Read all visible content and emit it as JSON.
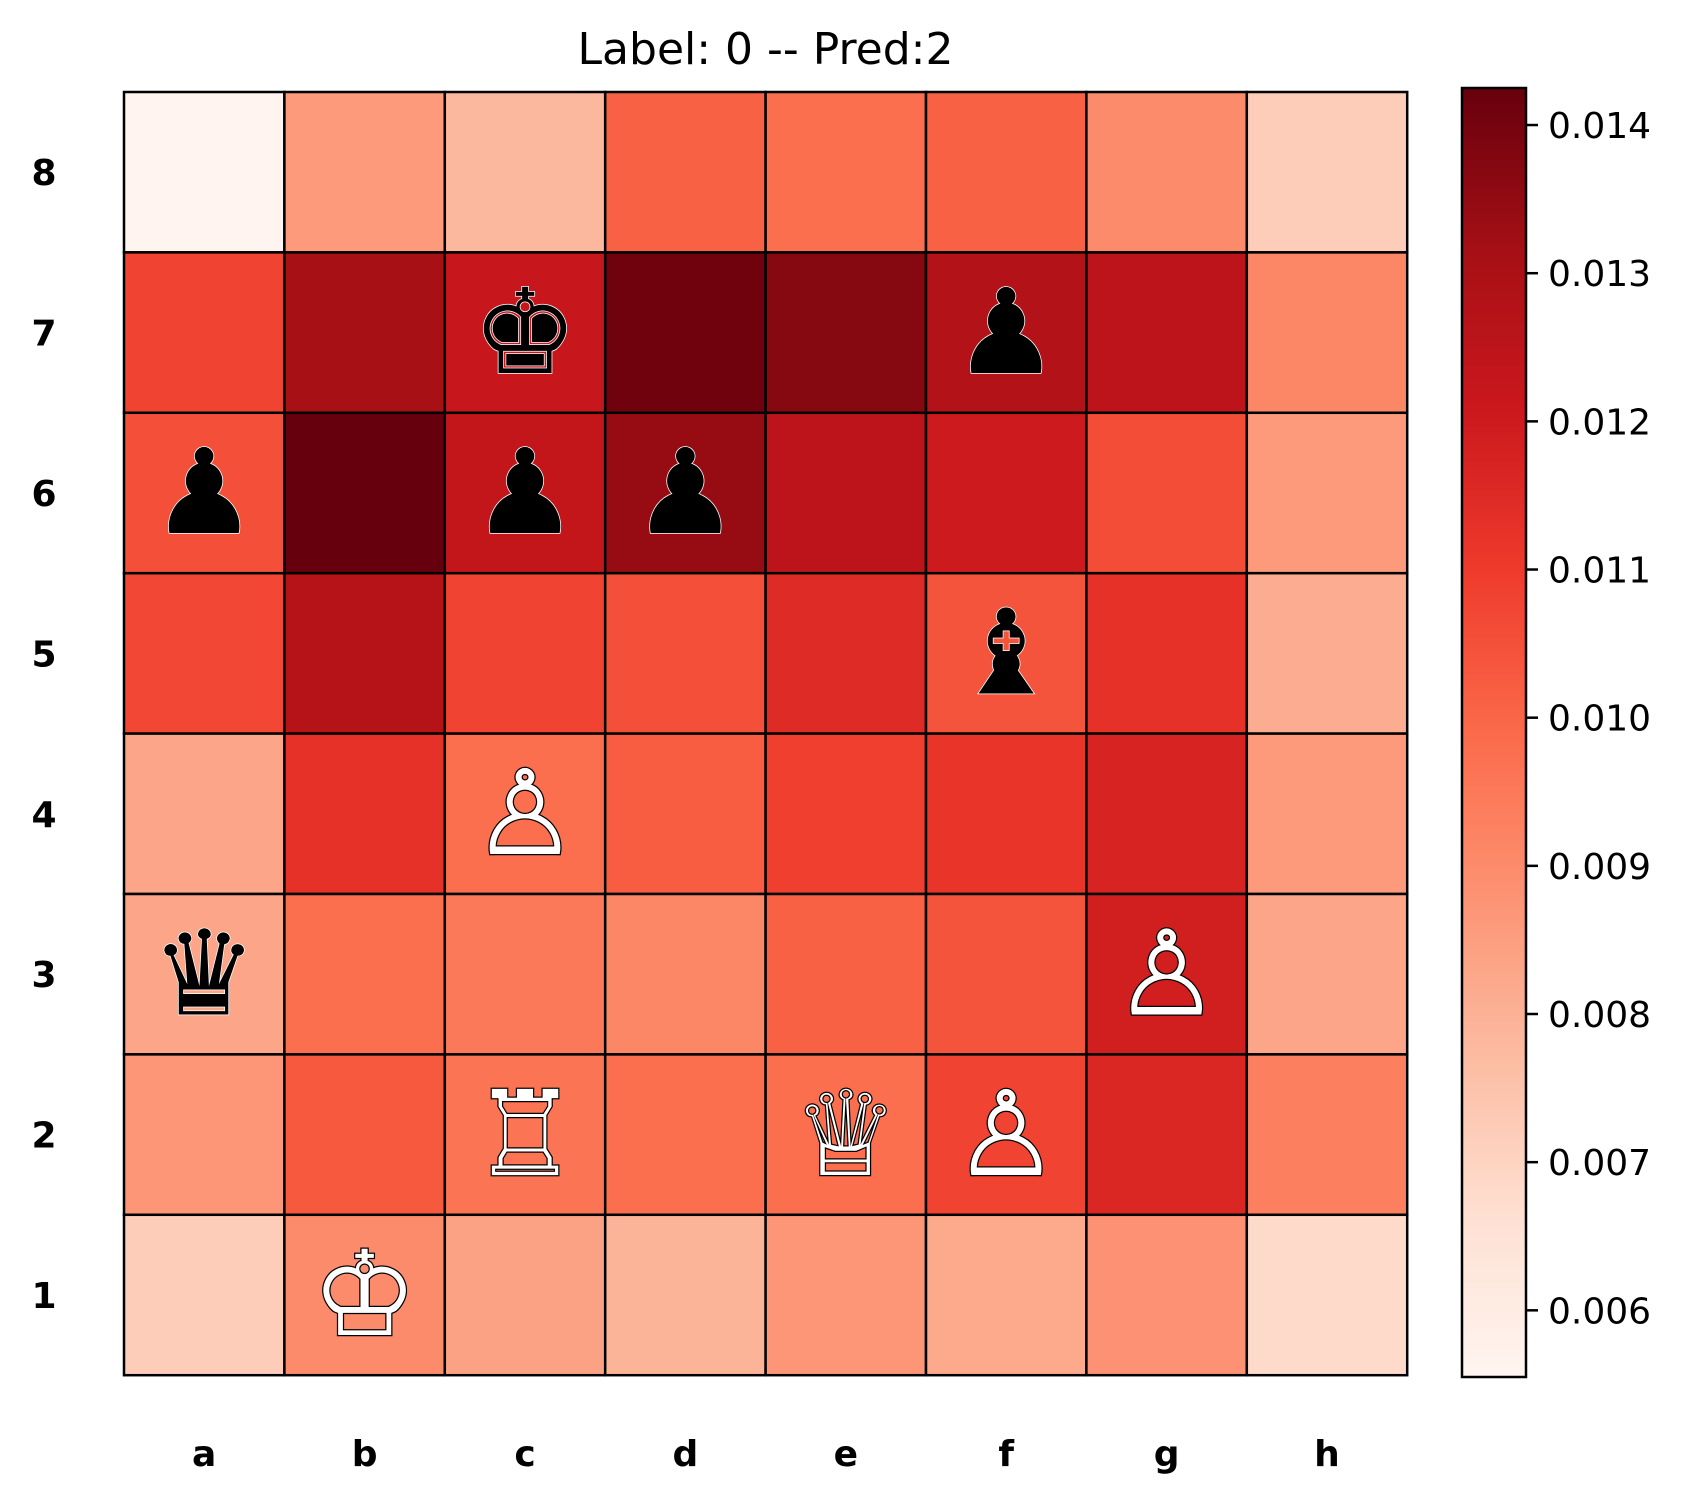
{
  "chart_data": {
    "type": "heatmap",
    "title": "Label: 0 -- Pred:2",
    "files": [
      "a",
      "b",
      "c",
      "d",
      "e",
      "f",
      "g",
      "h"
    ],
    "ranks": [
      "8",
      "7",
      "6",
      "5",
      "4",
      "3",
      "2",
      "1"
    ],
    "values": [
      [
        0.0056,
        0.0086,
        0.0078,
        0.0101,
        0.0098,
        0.0101,
        0.009,
        0.0072
      ],
      [
        0.0108,
        0.0131,
        0.0122,
        0.0141,
        0.0137,
        0.0128,
        0.0125,
        0.0091
      ],
      [
        0.0105,
        0.0143,
        0.0123,
        0.0134,
        0.0125,
        0.012,
        0.0106,
        0.0086
      ],
      [
        0.0107,
        0.0127,
        0.0108,
        0.0105,
        0.0115,
        0.0104,
        0.0113,
        0.0081
      ],
      [
        0.0083,
        0.0113,
        0.0098,
        0.0102,
        0.0109,
        0.0112,
        0.0117,
        0.0086
      ],
      [
        0.0083,
        0.0098,
        0.0095,
        0.0091,
        0.0101,
        0.0104,
        0.0119,
        0.0083
      ],
      [
        0.0087,
        0.0103,
        0.0096,
        0.0098,
        0.0098,
        0.0108,
        0.0116,
        0.0093
      ],
      [
        0.0072,
        0.009,
        0.0084,
        0.0079,
        0.0087,
        0.0082,
        0.0088,
        0.0068
      ]
    ],
    "colorbar": {
      "min": 0.00555,
      "max": 0.01425,
      "ticks": [
        "0.006",
        "0.007",
        "0.008",
        "0.009",
        "0.010",
        "0.011",
        "0.012",
        "0.013",
        "0.014"
      ],
      "colormap": "Reds",
      "colormap_colors": [
        "#fff5f0",
        "#fee0d2",
        "#fcbba1",
        "#fc9272",
        "#fb6a4a",
        "#ef3b2c",
        "#cb181d",
        "#a50f15",
        "#67000d"
      ]
    },
    "pieces": [
      {
        "square": "c7",
        "symbol": "♚",
        "color": "black",
        "name": "black-king"
      },
      {
        "square": "f7",
        "symbol": "♟",
        "color": "black",
        "name": "black-pawn"
      },
      {
        "square": "a6",
        "symbol": "♟",
        "color": "black",
        "name": "black-pawn"
      },
      {
        "square": "c6",
        "symbol": "♟",
        "color": "black",
        "name": "black-pawn"
      },
      {
        "square": "d6",
        "symbol": "♟",
        "color": "black",
        "name": "black-pawn"
      },
      {
        "square": "f5",
        "symbol": "♝",
        "color": "black",
        "name": "black-bishop"
      },
      {
        "square": "c4",
        "symbol": "♙",
        "color": "white",
        "name": "white-pawn"
      },
      {
        "square": "a3",
        "symbol": "♛",
        "color": "black",
        "name": "black-queen"
      },
      {
        "square": "g3",
        "symbol": "♙",
        "color": "white",
        "name": "white-pawn"
      },
      {
        "square": "c2",
        "symbol": "♖",
        "color": "white",
        "name": "white-rook"
      },
      {
        "square": "e2",
        "symbol": "♕",
        "color": "white",
        "name": "white-queen"
      },
      {
        "square": "f2",
        "symbol": "♙",
        "color": "white",
        "name": "white-pawn"
      },
      {
        "square": "b1",
        "symbol": "♔",
        "color": "white",
        "name": "white-king"
      }
    ]
  }
}
